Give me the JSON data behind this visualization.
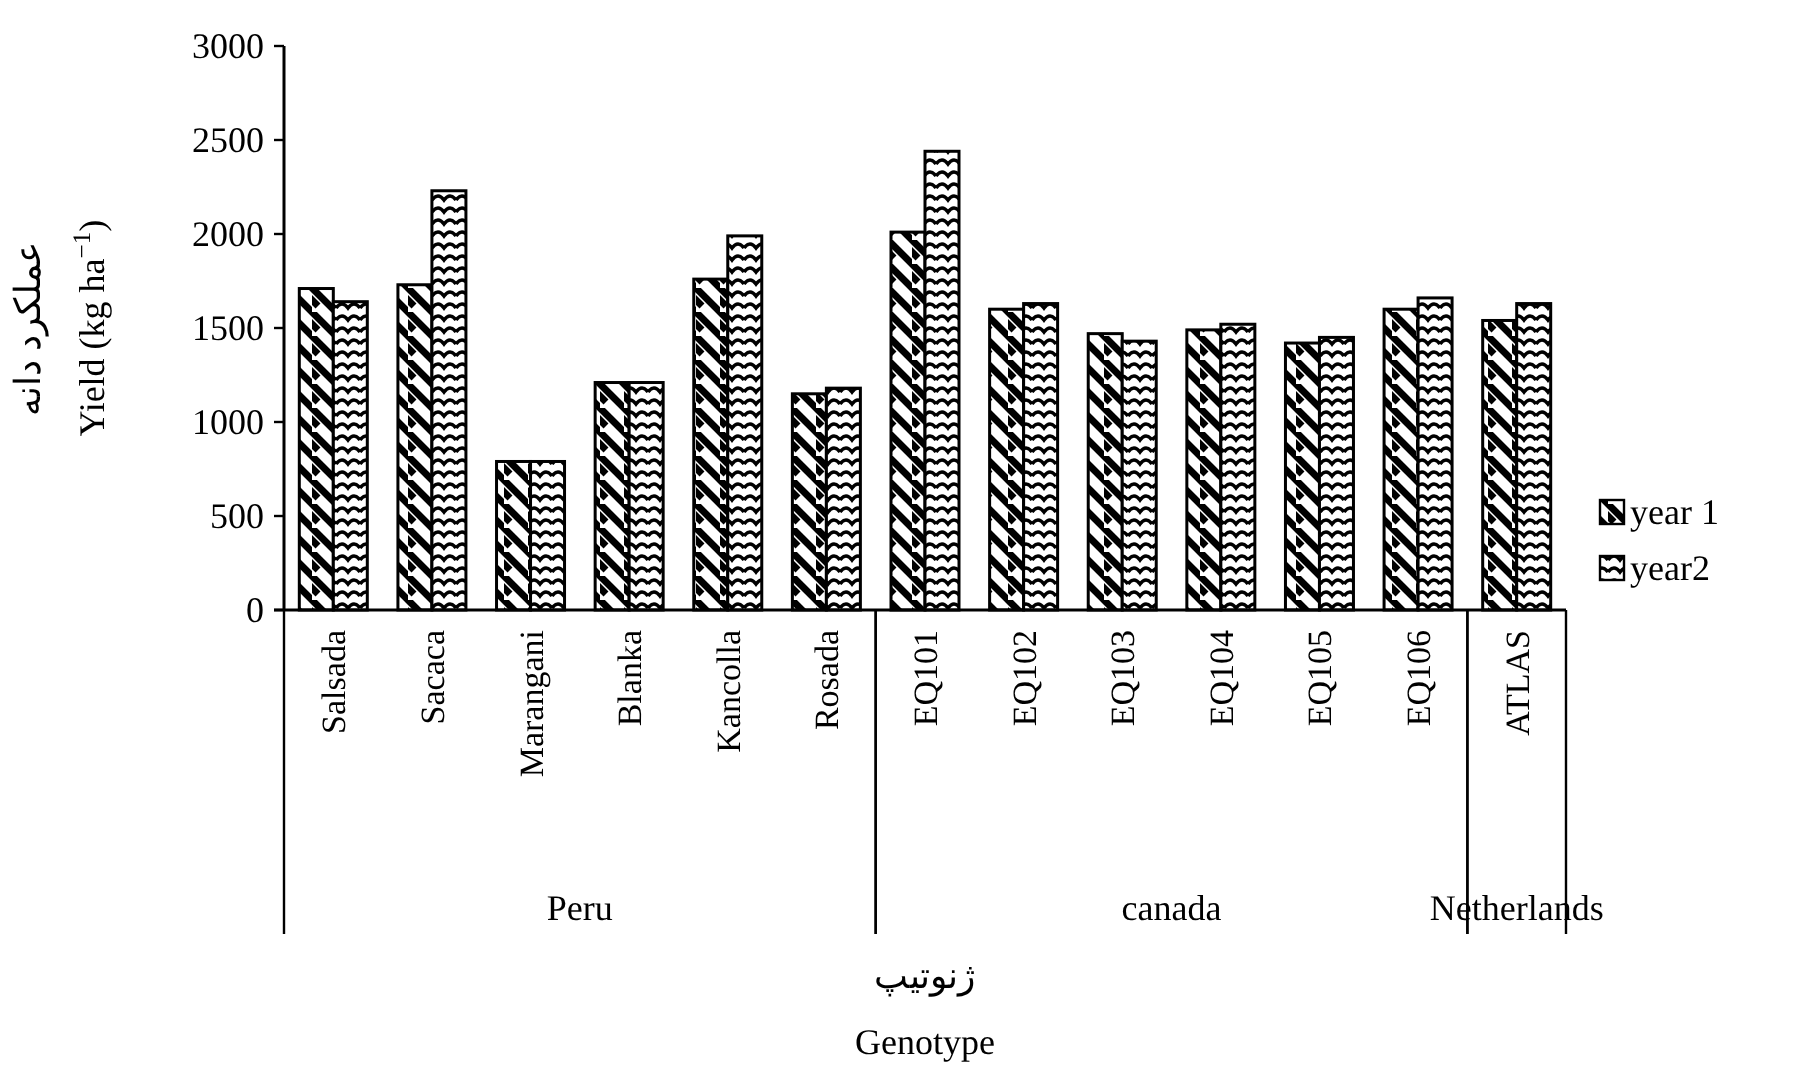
{
  "chart_data": {
    "type": "bar",
    "ylabel": "عملکرد دانه\nYield (kg ha$^{−1}$)",
    "xlabel": "ژنوتیپ\nGenotype",
    "categories": [
      "Salsada",
      "Sacaca",
      "Marangani",
      "Blanka",
      "Kancolla",
      "Rosada",
      "EQ101",
      "EQ102",
      "EQ103",
      "EQ104",
      "EQ105",
      "EQ106",
      "ATLAS"
    ],
    "series": [
      {
        "name": "year 1",
        "color": "#000000",
        "values": [
          1710,
          1730,
          790,
          1210,
          1760,
          1150,
          2010,
          1600,
          1470,
          1490,
          1420,
          1600,
          1540
        ]
      },
      {
        "name": "year2",
        "color": "#000000",
        "values": [
          1640,
          2230,
          790,
          1210,
          1990,
          1180,
          2440,
          1630,
          1430,
          1520,
          1450,
          1660,
          1630
        ]
      }
    ],
    "annotations": [
      "Peru",
      "canada",
      "Netherlands"
    ],
    "ylim": [
      0,
      3000
    ],
    "yticks": [
      0,
      500,
      1000,
      1500,
      2000,
      2500,
      3000
    ],
    "legend": "right"
  }
}
